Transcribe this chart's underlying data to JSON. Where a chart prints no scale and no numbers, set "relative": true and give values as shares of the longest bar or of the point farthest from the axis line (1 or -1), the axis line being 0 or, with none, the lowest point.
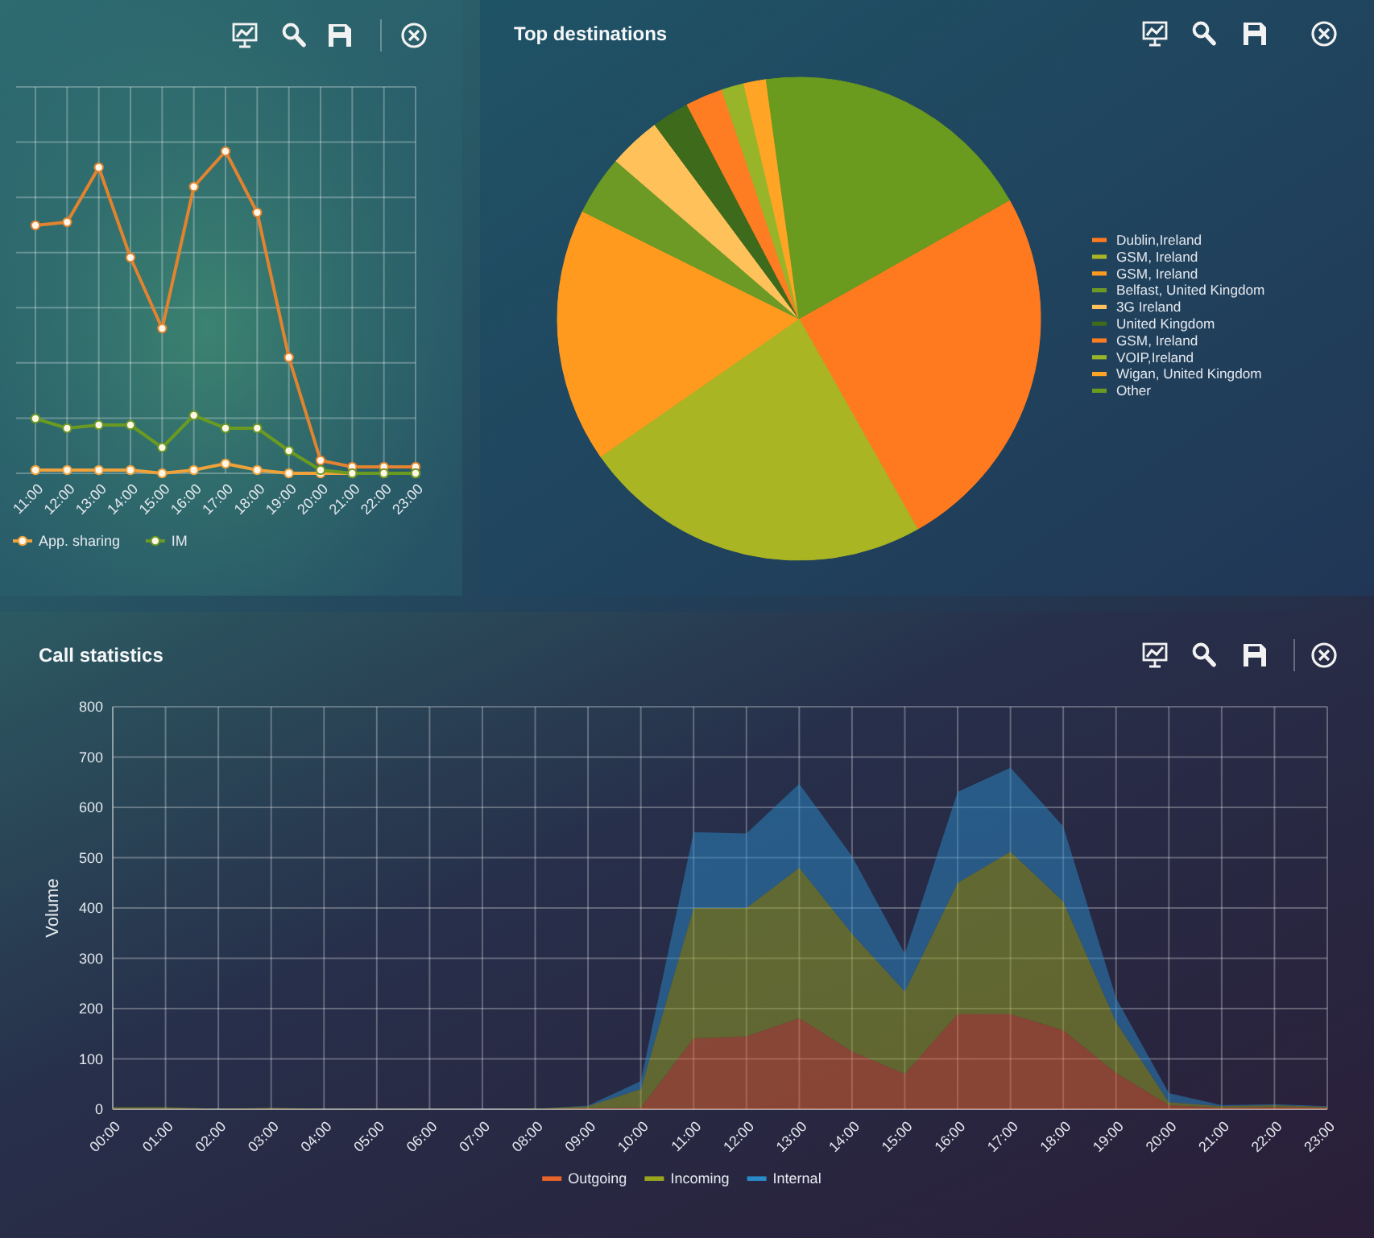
{
  "chart_data": [
    {
      "type": "line",
      "relative": true,
      "categories": [
        "11:00",
        "12:00",
        "13:00",
        "14:00",
        "15:00",
        "16:00",
        "17:00",
        "18:00",
        "19:00",
        "20:00",
        "21:00",
        "22:00",
        "23:00"
      ],
      "series": [
        {
          "color": "#e2832f",
          "values": [
            0.77,
            0.78,
            0.95,
            0.67,
            0.45,
            0.89,
            1,
            0.81,
            0.36,
            0.04,
            0.02,
            0.02,
            0.02
          ]
        },
        {
          "name": "App. sharing",
          "color": "#f0a23a",
          "values": [
            0.01,
            0.01,
            0.01,
            0.01,
            0,
            0.01,
            0.03,
            0.01,
            0,
            0,
            0,
            0,
            0
          ]
        },
        {
          "name": "IM",
          "color": "#6b9a22",
          "values": [
            0.17,
            0.14,
            0.15,
            0.15,
            0.08,
            0.18,
            0.14,
            0.14,
            0.07,
            0.01,
            0,
            0,
            0
          ]
        }
      ],
      "marker": "circle",
      "grid": true,
      "legend": "bottom"
    },
    {
      "type": "pie",
      "title": "Top destinations",
      "categories": [
        "Dublin,Ireland",
        "GSM, Ireland",
        "GSM, Ireland",
        "Belfast, United Kingdom",
        "3G Ireland",
        "United Kingdom",
        "GSM, Ireland",
        "VOIP,Ireland",
        "Wigan, United Kingdom",
        "Other"
      ],
      "values": [
        25,
        23.5,
        17,
        4,
        3.5,
        2.5,
        2.5,
        1.5,
        1.5,
        19
      ],
      "colors": [
        "#ff7a1f",
        "#a9b523",
        "#ff9a1f",
        "#6c9a24",
        "#ffc15a",
        "#3e6a1c",
        "#ff7d22",
        "#98b52a",
        "#ffa424",
        "#6a9a1e"
      ],
      "legend": "right"
    },
    {
      "type": "area",
      "title": "Call statistics",
      "ylabel": "Volume",
      "categories": [
        "00:00",
        "01:00",
        "02:00",
        "03:00",
        "04:00",
        "05:00",
        "06:00",
        "07:00",
        "08:00",
        "09:00",
        "10:00",
        "11:00",
        "12:00",
        "13:00",
        "14:00",
        "15:00",
        "16:00",
        "17:00",
        "18:00",
        "19:00",
        "20:00",
        "21:00",
        "22:00",
        "23:00"
      ],
      "series": [
        {
          "name": "Outgoing",
          "color": "#e8642a",
          "values": [
            1,
            1,
            0,
            1,
            0,
            0,
            0,
            0,
            0,
            2,
            3,
            141,
            145,
            181,
            115,
            70,
            189,
            189,
            157,
            72,
            8,
            3,
            4,
            3
          ]
        },
        {
          "name": "Incoming",
          "color": "#9aa51f",
          "values": [
            3,
            3,
            1,
            2,
            1,
            1,
            1,
            0,
            1,
            4,
            37,
            259,
            255,
            299,
            234,
            164,
            261,
            323,
            256,
            101,
            6,
            3,
            4,
            2
          ]
        },
        {
          "name": "Internal",
          "color": "#2a8ac8",
          "values": [
            0,
            0,
            0,
            0,
            0,
            0,
            0,
            0,
            0,
            1,
            16,
            151,
            148,
            167,
            154,
            75,
            181,
            167,
            149,
            48,
            18,
            2,
            2,
            1
          ]
        }
      ],
      "stacked": true,
      "ylim": [
        0,
        800
      ],
      "yticks": [
        0,
        100,
        200,
        300,
        400,
        500,
        600,
        700,
        800
      ],
      "grid": true,
      "legend": "bottom"
    }
  ]
}
